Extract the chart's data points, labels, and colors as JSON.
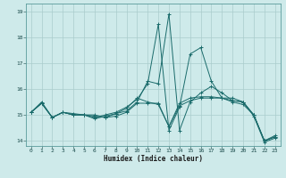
{
  "title": "",
  "xlabel": "Humidex (Indice chaleur)",
  "bg_color": "#ceeaea",
  "grid_color": "#aacccc",
  "line_color": "#1a6b6b",
  "xlim": [
    -0.5,
    23.5
  ],
  "ylim": [
    13.8,
    19.3
  ],
  "yticks": [
    14,
    15,
    16,
    17,
    18,
    19
  ],
  "xticks": [
    0,
    1,
    2,
    3,
    4,
    5,
    6,
    7,
    8,
    9,
    10,
    11,
    12,
    13,
    14,
    15,
    16,
    17,
    18,
    19,
    20,
    21,
    22,
    23
  ],
  "series": [
    [
      15.1,
      15.45,
      14.9,
      15.1,
      15.0,
      15.0,
      15.0,
      14.9,
      15.05,
      15.15,
      15.5,
      16.3,
      16.2,
      18.9,
      14.4,
      15.5,
      15.85,
      16.1,
      15.85,
      15.55,
      15.5,
      15.0,
      14.0,
      14.15
    ],
    [
      15.1,
      15.45,
      14.9,
      15.1,
      15.0,
      15.0,
      14.9,
      15.0,
      15.1,
      15.3,
      15.6,
      16.2,
      18.5,
      14.4,
      15.3,
      17.35,
      17.6,
      16.3,
      15.65,
      15.55,
      15.5,
      15.0,
      14.0,
      14.15
    ],
    [
      15.1,
      15.45,
      14.9,
      15.1,
      15.0,
      15.0,
      14.85,
      14.95,
      15.05,
      15.25,
      15.65,
      15.5,
      15.4,
      14.55,
      15.45,
      15.65,
      15.7,
      15.7,
      15.65,
      15.5,
      15.4,
      15.0,
      14.0,
      14.2
    ],
    [
      15.1,
      15.5,
      14.9,
      15.1,
      15.05,
      15.0,
      14.95,
      14.9,
      14.95,
      15.1,
      15.45,
      15.45,
      15.45,
      14.55,
      15.35,
      15.55,
      15.65,
      15.65,
      15.65,
      15.65,
      15.5,
      14.95,
      13.95,
      14.1
    ]
  ]
}
